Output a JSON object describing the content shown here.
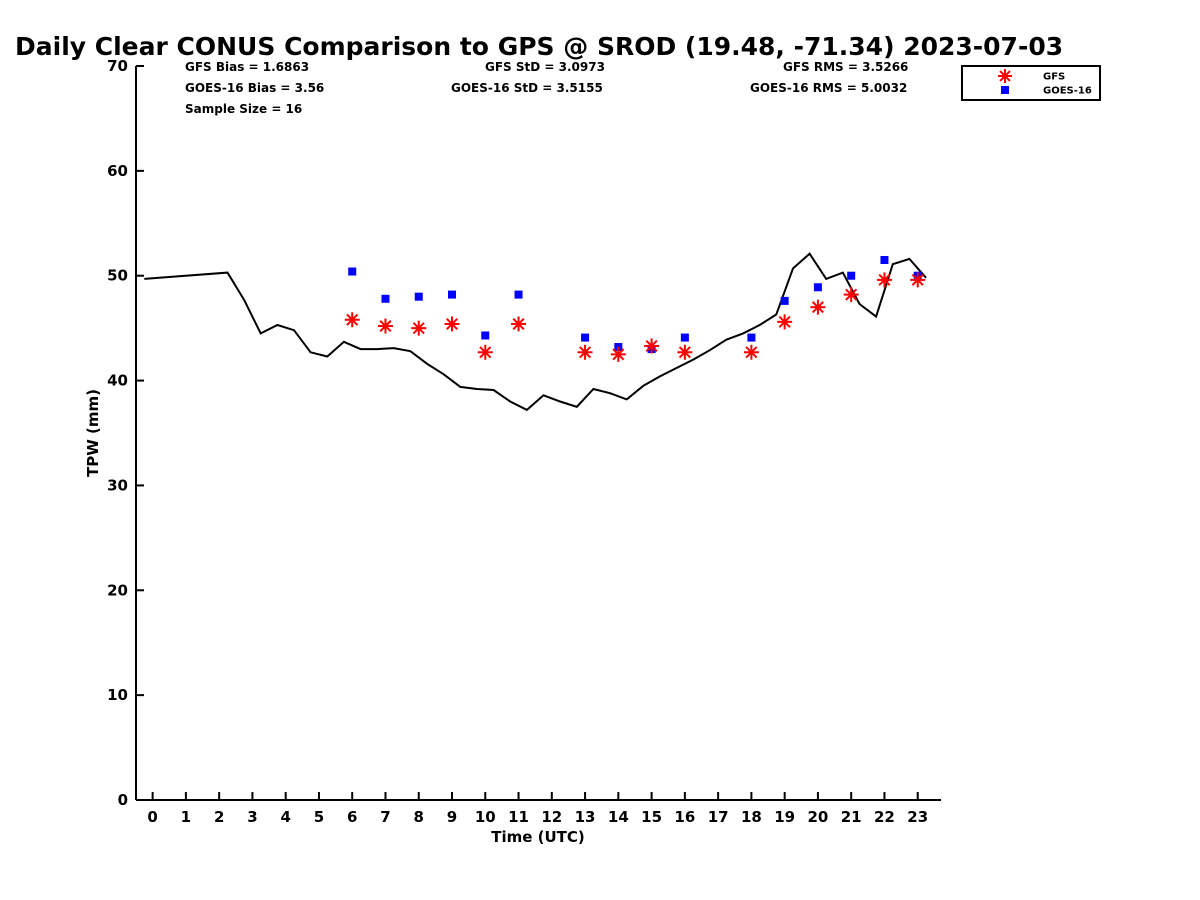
{
  "chart_data": {
    "type": "line",
    "title": "Daily Clear CONUS Comparison to GPS @ SROD (19.48, -71.34) 2023-07-03",
    "xlabel": "Time (UTC)",
    "ylabel": "TPW (mm)",
    "xlim": [
      -0.5,
      23.7
    ],
    "ylim": [
      0,
      70
    ],
    "xticks": [
      0,
      1,
      2,
      3,
      4,
      5,
      6,
      7,
      8,
      9,
      10,
      11,
      12,
      13,
      14,
      15,
      16,
      17,
      18,
      19,
      20,
      21,
      22,
      23
    ],
    "yticks": [
      0,
      10,
      20,
      30,
      40,
      50,
      60,
      70
    ],
    "grid": false,
    "legend_position": "top-right",
    "stats": {
      "gfs_bias": "GFS Bias = 1.6863",
      "goes_bias": "GOES-16 Bias = 3.56",
      "sample_size": "Sample Size = 16",
      "gfs_std": "GFS StD = 3.0973",
      "goes_std": "GOES-16 StD = 3.5155",
      "gfs_rms": "GFS RMS = 3.5266",
      "goes_rms": "GOES-16 RMS = 5.0032"
    },
    "series": [
      {
        "name": "GPS",
        "kind": "line",
        "color": "#000000",
        "x": [
          -0.25,
          2.25,
          2.75,
          3.25,
          3.75,
          4.25,
          4.75,
          5.25,
          5.75,
          6.25,
          6.75,
          7.25,
          7.75,
          8.25,
          8.75,
          9.25,
          9.75,
          10.25,
          10.75,
          11.25,
          11.75,
          12.25,
          12.75,
          13.25,
          13.75,
          14.25,
          14.75,
          15.25,
          15.75,
          16.25,
          16.75,
          17.25,
          17.75,
          18.25,
          18.75,
          19.25,
          19.75,
          20.25,
          20.75,
          21.25,
          21.75,
          22.25,
          22.75,
          23.25
        ],
        "y": [
          49.7,
          50.3,
          47.7,
          44.5,
          45.3,
          44.8,
          42.7,
          42.3,
          43.7,
          43.0,
          43.0,
          43.1,
          42.8,
          41.6,
          40.6,
          39.4,
          39.2,
          39.1,
          38.0,
          37.2,
          38.6,
          38.0,
          37.5,
          39.2,
          38.8,
          38.2,
          39.5,
          40.4,
          41.2,
          42.0,
          42.9,
          43.9,
          44.5,
          45.3,
          46.3,
          50.7,
          52.1,
          49.7,
          50.3,
          47.3,
          46.1,
          51.1,
          51.6,
          49.8
        ]
      },
      {
        "name": "GFS",
        "kind": "marker-star",
        "color": "#ff0000",
        "x": [
          6,
          7,
          8,
          9,
          10,
          11,
          13,
          14,
          15,
          16,
          18,
          19,
          20,
          21,
          22,
          23
        ],
        "y": [
          45.8,
          45.2,
          45.0,
          45.4,
          42.7,
          45.4,
          42.7,
          42.5,
          43.3,
          42.7,
          42.7,
          45.6,
          47.0,
          48.2,
          49.6,
          49.6
        ]
      },
      {
        "name": "GOES-16",
        "kind": "marker-square",
        "color": "#0000ff",
        "x": [
          6,
          7,
          8,
          9,
          10,
          11,
          13,
          14,
          15,
          16,
          18,
          19,
          20,
          21,
          22,
          23
        ],
        "y": [
          50.4,
          47.8,
          48.0,
          48.2,
          44.3,
          48.2,
          44.1,
          43.2,
          43.0,
          44.1,
          44.1,
          47.6,
          48.9,
          50.0,
          51.5,
          50.0
        ]
      }
    ],
    "legend": [
      {
        "label": "GFS",
        "marker": "star",
        "color": "#ff0000"
      },
      {
        "label": "GOES-16",
        "marker": "square",
        "color": "#0000ff"
      }
    ]
  }
}
